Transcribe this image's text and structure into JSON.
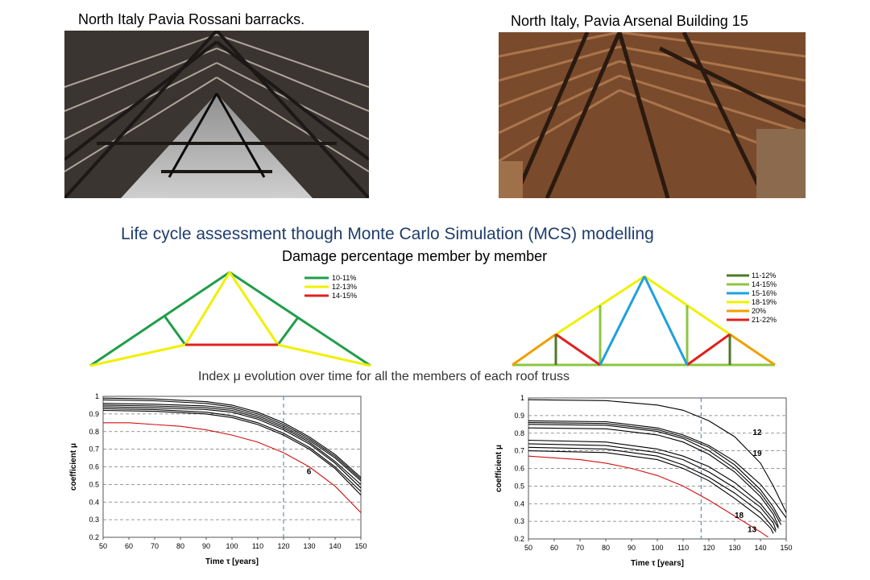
{
  "photos": {
    "left_caption": "North Italy Pavia Rossani barracks.",
    "right_caption": "North Italy, Pavia Arsenal Building 15"
  },
  "headings": {
    "main": "Life cycle assessment though Monte Carlo Simulation (MCS) modelling",
    "damage": "Damage percentage member by member",
    "index": "Index μ evolution over time for all the members of each roof truss"
  },
  "truss_left": {
    "legend": [
      {
        "label": "10-11%",
        "color": "#1f9e4a"
      },
      {
        "label": "12-13%",
        "color": "#f0f000"
      },
      {
        "label": "14-15%",
        "color": "#e02020"
      }
    ]
  },
  "truss_right": {
    "legend": [
      {
        "label": "11-12%",
        "color": "#4e7a2a"
      },
      {
        "label": "14-15%",
        "color": "#8cc63f"
      },
      {
        "label": "15-16%",
        "color": "#1ea0e0"
      },
      {
        "label": "18-19%",
        "color": "#f0f000"
      },
      {
        "label": "20%",
        "color": "#f0a000"
      },
      {
        "label": "21-22%",
        "color": "#e02020"
      }
    ]
  },
  "chart_data": [
    {
      "type": "line",
      "xlabel": "Time τ [years]",
      "ylabel": "coefficient μ",
      "xlim": [
        50,
        150
      ],
      "ylim": [
        0.2,
        1
      ],
      "xticks": [
        "50",
        "60",
        "70",
        "80",
        "90",
        "100",
        "110",
        "120",
        "130",
        "140",
        "150"
      ],
      "yticks": [
        "0.2",
        "0.3",
        "0.4",
        "0.5",
        "0.6",
        "0.7",
        "0.8",
        "0.9",
        "1"
      ],
      "reference_line_x": 120,
      "grid": "horizontal dashed",
      "annotations": [
        {
          "text": "6",
          "x": 129,
          "y": 0.56
        }
      ],
      "series": [
        {
          "values_x": [
            50,
            70,
            90,
            100,
            110,
            120,
            130,
            140,
            150
          ],
          "values_y": [
            0.99,
            0.985,
            0.97,
            0.95,
            0.91,
            0.85,
            0.77,
            0.67,
            0.54
          ],
          "color": "#000000"
        },
        {
          "values_x": [
            50,
            70,
            90,
            100,
            110,
            120,
            130,
            140,
            150
          ],
          "values_y": [
            0.98,
            0.975,
            0.96,
            0.94,
            0.9,
            0.84,
            0.76,
            0.66,
            0.53
          ],
          "color": "#000000"
        },
        {
          "values_x": [
            50,
            70,
            90,
            100,
            110,
            120,
            130,
            140,
            150
          ],
          "values_y": [
            0.96,
            0.955,
            0.945,
            0.93,
            0.89,
            0.83,
            0.75,
            0.65,
            0.52
          ],
          "color": "#000000"
        },
        {
          "values_x": [
            50,
            70,
            90,
            100,
            110,
            120,
            130,
            140,
            150
          ],
          "values_y": [
            0.95,
            0.945,
            0.935,
            0.92,
            0.88,
            0.82,
            0.74,
            0.63,
            0.5
          ],
          "color": "#000000"
        },
        {
          "values_x": [
            50,
            70,
            90,
            100,
            110,
            120,
            130,
            140,
            150
          ],
          "values_y": [
            0.94,
            0.935,
            0.925,
            0.91,
            0.87,
            0.81,
            0.73,
            0.62,
            0.48
          ],
          "color": "#000000"
        },
        {
          "values_x": [
            50,
            70,
            90,
            100,
            110,
            120,
            130,
            140,
            150
          ],
          "values_y": [
            0.93,
            0.925,
            0.91,
            0.89,
            0.85,
            0.79,
            0.71,
            0.6,
            0.46
          ],
          "color": "#000000"
        },
        {
          "values_x": [
            50,
            70,
            90,
            100,
            110,
            120,
            130,
            140,
            150
          ],
          "values_y": [
            0.92,
            0.915,
            0.9,
            0.88,
            0.84,
            0.78,
            0.7,
            0.59,
            0.44
          ],
          "color": "#000000"
        },
        {
          "values_x": [
            50,
            60,
            70,
            80,
            90,
            100,
            110,
            120,
            130,
            140,
            150
          ],
          "values_y": [
            0.85,
            0.85,
            0.84,
            0.83,
            0.81,
            0.78,
            0.74,
            0.68,
            0.6,
            0.49,
            0.34
          ],
          "color": "#d01010"
        }
      ]
    },
    {
      "type": "line",
      "xlabel": "Time τ [years]",
      "ylabel": "coefficient μ",
      "xlim": [
        50,
        150
      ],
      "ylim": [
        0.2,
        1
      ],
      "xticks": [
        "50",
        "60",
        "70",
        "80",
        "90",
        "100",
        "110",
        "120",
        "130",
        "140",
        "150"
      ],
      "yticks": [
        "0.2",
        "0.3",
        "0.4",
        "0.5",
        "0.6",
        "0.7",
        "0.8",
        "0.9",
        "1"
      ],
      "reference_line_x": 117,
      "grid": "horizontal dashed",
      "annotations": [
        {
          "text": "12",
          "x": 137,
          "y": 0.79
        },
        {
          "text": "19",
          "x": 137,
          "y": 0.67
        },
        {
          "text": "18",
          "x": 130,
          "y": 0.32
        },
        {
          "text": "13",
          "x": 135,
          "y": 0.24
        }
      ],
      "series": [
        {
          "values_x": [
            50,
            80,
            100,
            110,
            120,
            130,
            140,
            145,
            150
          ],
          "values_y": [
            0.99,
            0.985,
            0.96,
            0.93,
            0.87,
            0.78,
            0.63,
            0.5,
            0.35
          ],
          "color": "#000000"
        },
        {
          "values_x": [
            50,
            80,
            100,
            110,
            120,
            130,
            140,
            145,
            150
          ],
          "values_y": [
            0.87,
            0.865,
            0.83,
            0.79,
            0.73,
            0.64,
            0.51,
            0.42,
            0.32
          ],
          "color": "#000000"
        },
        {
          "values_x": [
            50,
            80,
            100,
            110,
            120,
            130,
            140,
            145,
            148
          ],
          "values_y": [
            0.86,
            0.855,
            0.82,
            0.78,
            0.72,
            0.62,
            0.48,
            0.38,
            0.3
          ],
          "color": "#000000"
        },
        {
          "values_x": [
            50,
            80,
            100,
            110,
            120,
            130,
            140,
            145,
            148
          ],
          "values_y": [
            0.85,
            0.845,
            0.81,
            0.77,
            0.7,
            0.6,
            0.46,
            0.36,
            0.28
          ],
          "color": "#000000"
        },
        {
          "values_x": [
            50,
            80,
            100,
            110,
            120,
            130,
            140,
            145,
            147
          ],
          "values_y": [
            0.83,
            0.825,
            0.79,
            0.75,
            0.68,
            0.58,
            0.44,
            0.34,
            0.27
          ],
          "color": "#000000"
        },
        {
          "values_x": [
            50,
            80,
            100,
            110,
            120,
            130,
            140,
            145,
            147
          ],
          "values_y": [
            0.76,
            0.75,
            0.71,
            0.67,
            0.61,
            0.52,
            0.4,
            0.31,
            0.26
          ],
          "color": "#000000"
        },
        {
          "values_x": [
            50,
            80,
            100,
            110,
            120,
            130,
            140,
            145,
            146
          ],
          "values_y": [
            0.74,
            0.73,
            0.69,
            0.65,
            0.58,
            0.49,
            0.38,
            0.29,
            0.25
          ],
          "color": "#000000"
        },
        {
          "values_x": [
            50,
            80,
            100,
            110,
            120,
            130,
            140,
            144,
            146
          ],
          "values_y": [
            0.72,
            0.71,
            0.67,
            0.62,
            0.55,
            0.46,
            0.35,
            0.28,
            0.24
          ],
          "color": "#000000"
        },
        {
          "values_x": [
            50,
            80,
            100,
            110,
            120,
            130,
            140,
            144,
            145
          ],
          "values_y": [
            0.7,
            0.69,
            0.65,
            0.6,
            0.53,
            0.43,
            0.32,
            0.26,
            0.23
          ],
          "color": "#000000"
        },
        {
          "values_x": [
            50,
            60,
            70,
            80,
            90,
            100,
            110,
            120,
            130,
            140,
            143
          ],
          "values_y": [
            0.67,
            0.66,
            0.65,
            0.63,
            0.6,
            0.56,
            0.5,
            0.42,
            0.33,
            0.24,
            0.21
          ],
          "color": "#d01010"
        }
      ]
    }
  ]
}
